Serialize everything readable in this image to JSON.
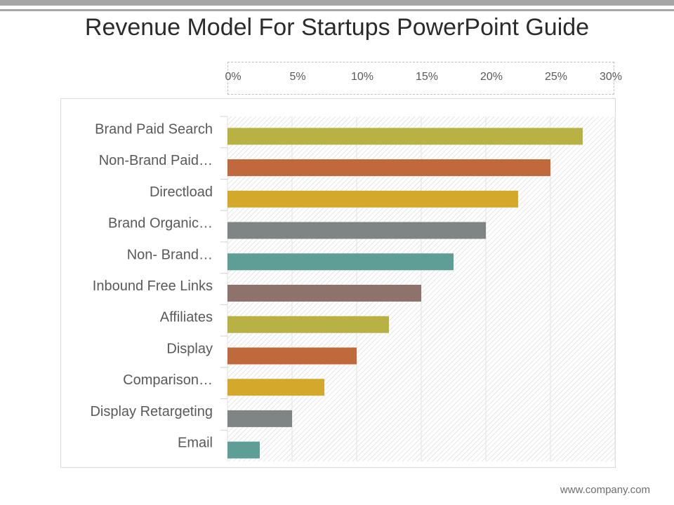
{
  "title": "Revenue Model For Startups PowerPoint Guide",
  "footer": "www.company.com",
  "chart_data": {
    "type": "bar",
    "orientation": "horizontal",
    "title": "Revenue Model For Startups PowerPoint Guide",
    "categories": [
      "Brand Paid Search",
      "Non-Brand Paid…",
      "Directload",
      "Brand Organic…",
      "Non- Brand…",
      "Inbound Free Links",
      "Affiliates",
      "Display",
      "Comparison…",
      "Display Retargeting",
      "Email"
    ],
    "values": [
      27.5,
      25,
      22.5,
      20,
      17.5,
      15,
      12.5,
      10,
      7.5,
      5,
      2.5
    ],
    "colors": [
      "#b8b244",
      "#c0693d",
      "#d4a82a",
      "#7f8484",
      "#5f9e97",
      "#8d736c",
      "#b8b244",
      "#c0693d",
      "#d4a82a",
      "#7f8484",
      "#5f9e97"
    ],
    "xticks": [
      "0%",
      "5%",
      "10%",
      "15%",
      "20%",
      "25%",
      "30%"
    ],
    "xlim": [
      0,
      30
    ],
    "xlabel": "",
    "ylabel": "",
    "axis_position": "top",
    "grid": true
  }
}
